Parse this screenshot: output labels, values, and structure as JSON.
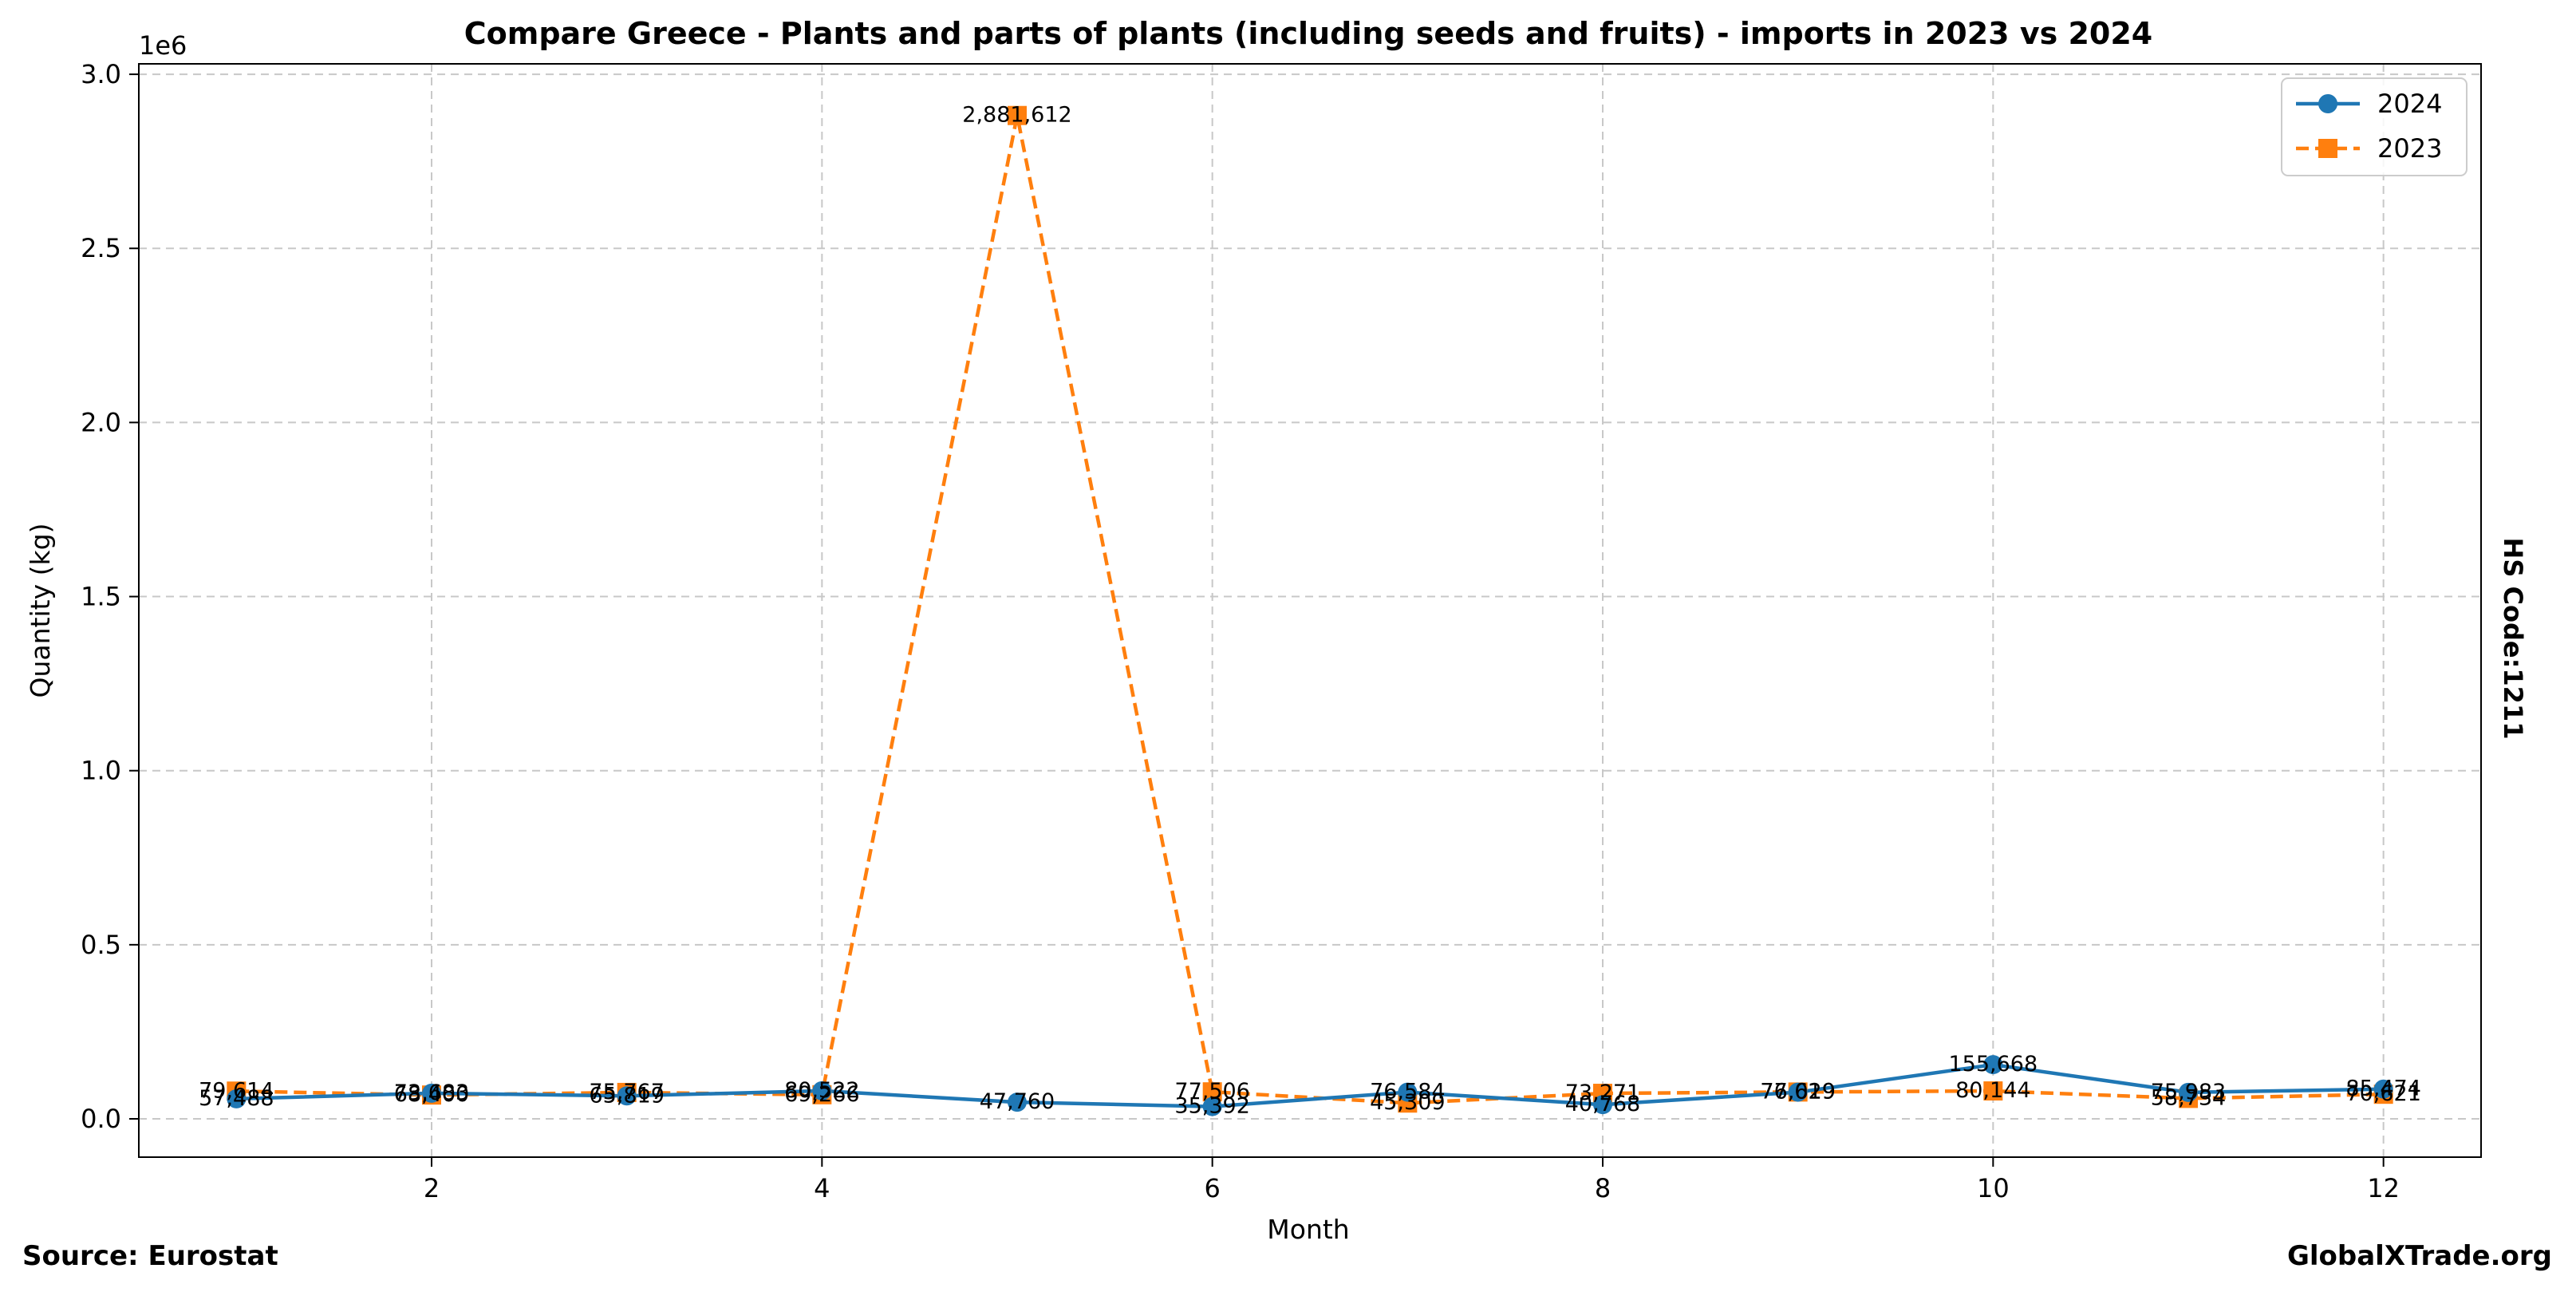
{
  "chart_data": {
    "type": "line",
    "title": "Compare Greece - Plants and parts of plants (including seeds and fruits) - imports in 2023 vs 2024",
    "xlabel": "Month",
    "ylabel": "Quantity (kg)",
    "y_scale_label": "1e6",
    "xlim": [
      0.5,
      12.5
    ],
    "ylim": [
      -110000,
      3030000
    ],
    "x_ticks": [
      2,
      4,
      6,
      8,
      10,
      12
    ],
    "x_tick_labels": [
      "2",
      "4",
      "6",
      "8",
      "10",
      "12"
    ],
    "y_ticks": [
      0,
      500000,
      1000000,
      1500000,
      2000000,
      2500000,
      3000000
    ],
    "y_tick_labels": [
      "0.0",
      "0.5",
      "1.0",
      "1.5",
      "2.0",
      "2.5",
      "3.0"
    ],
    "grid": true,
    "legend_position": "top-right",
    "x": [
      1,
      2,
      3,
      4,
      5,
      6,
      7,
      8,
      9,
      10,
      11,
      12
    ],
    "series": [
      {
        "name": "2024",
        "color": "#1f77b4",
        "marker": "circle",
        "style": "solid",
        "values": [
          57488,
          73683,
          65819,
          80522,
          47760,
          35392,
          76584,
          40768,
          76629,
          155668,
          75983,
          85474
        ],
        "labels": [
          "57,488",
          "73,683",
          "65,819",
          "80,522",
          "47,760",
          "35,392",
          "76,584",
          "40,768",
          "76,629",
          "155,668",
          "75,983",
          "85,474"
        ]
      },
      {
        "name": "2023",
        "color": "#ff7f0e",
        "marker": "square",
        "style": "dashed",
        "values": [
          79614,
          68400,
          75767,
          69266,
          2881612,
          77506,
          45309,
          73271,
          77019,
          80144,
          58734,
          70621
        ],
        "labels": [
          "79,614",
          "68,400",
          "75,767",
          "69,266",
          "2,881,612",
          "77,506",
          "45,309",
          "73,271",
          "77,019",
          "80,144",
          "58,734",
          "70,621"
        ]
      }
    ]
  },
  "footer": {
    "source": "Source: Eurostat",
    "site": "GlobalXTrade.org",
    "hs_code": "HS Code:1211"
  }
}
